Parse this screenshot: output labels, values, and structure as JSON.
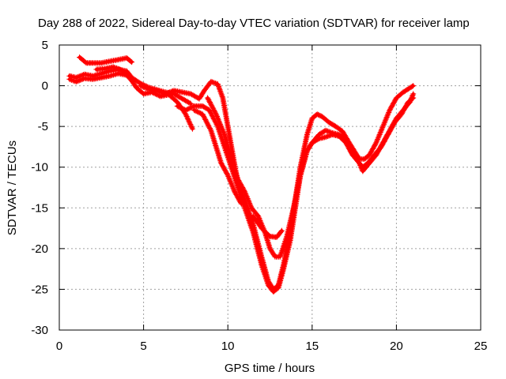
{
  "chart_data": {
    "type": "scatter",
    "title": "Day 288 of 2022, Sidereal Day-to-day VTEC variation (SDTVAR) for receiver lamp",
    "xlabel": "GPS time / hours",
    "ylabel": "SDTVAR / TECUs",
    "xlim": [
      0,
      25
    ],
    "ylim": [
      -30,
      5
    ],
    "xticks": [
      0,
      5,
      10,
      15,
      20,
      25
    ],
    "yticks": [
      5,
      0,
      -5,
      -10,
      -15,
      -20,
      -25,
      -30
    ],
    "grid": true,
    "marker": "plus",
    "series_color": "#ff0000",
    "series": [
      {
        "name": "track-1",
        "x": [
          0.6,
          1.0,
          1.5,
          2.0,
          2.5,
          3.0,
          3.5,
          4.0,
          4.3,
          4.8,
          5.3,
          5.8,
          6.3,
          6.8,
          7.3,
          7.8
        ],
        "y": [
          1.2,
          1.0,
          1.4,
          1.2,
          1.5,
          1.8,
          2.0,
          1.8,
          1.0,
          0.3,
          -0.2,
          -0.5,
          -0.8,
          -1.0,
          -1.6,
          -2.2
        ]
      },
      {
        "name": "track-2",
        "x": [
          0.6,
          1.0,
          1.5,
          2.0,
          2.5,
          3.0,
          3.5,
          4.0,
          4.3,
          4.6,
          5.0,
          5.5,
          6.0,
          6.5,
          7.0,
          7.5,
          7.9
        ],
        "y": [
          0.8,
          0.5,
          0.9,
          0.8,
          1.0,
          1.2,
          1.5,
          1.3,
          0.6,
          -0.3,
          -1.0,
          -0.8,
          -1.3,
          -1.1,
          -2.0,
          -3.5,
          -5.3
        ]
      },
      {
        "name": "track-3",
        "x": [
          1.2,
          1.6,
          2.0,
          2.5,
          3.0,
          3.5,
          4.0,
          4.3
        ],
        "y": [
          3.5,
          2.8,
          2.8,
          2.8,
          3.0,
          3.2,
          3.4,
          2.9
        ]
      },
      {
        "name": "track-4",
        "x": [
          2.2,
          2.7,
          3.2,
          3.6,
          4.0
        ],
        "y": [
          2.0,
          2.1,
          2.3,
          2.0,
          1.5
        ]
      },
      {
        "name": "track-5",
        "x": [
          4.8,
          5.3,
          5.8,
          6.3,
          6.8,
          7.3,
          7.8,
          8.3,
          8.6,
          9.0,
          9.4,
          9.7,
          10.0,
          10.3,
          10.6,
          11.0,
          11.5,
          12.0,
          12.4,
          12.7,
          13.0,
          13.3,
          13.6,
          14.0,
          14.3,
          14.7,
          15.0,
          15.3,
          15.6,
          16.0,
          16.4,
          16.8,
          17.2,
          17.5,
          17.8,
          18.1,
          18.4,
          18.8,
          19.2,
          19.6,
          20.0,
          20.4,
          20.7,
          21.0
        ],
        "y": [
          0.0,
          -0.4,
          -0.6,
          -1.0,
          -0.6,
          -0.8,
          -1.0,
          -1.6,
          -0.6,
          0.5,
          0.2,
          -1.5,
          -5.0,
          -8.5,
          -12.0,
          -14.0,
          -17.0,
          -21.0,
          -24.0,
          -25.0,
          -24.5,
          -22.0,
          -19.0,
          -14.0,
          -10.0,
          -6.0,
          -4.0,
          -3.5,
          -3.8,
          -4.5,
          -5.0,
          -5.6,
          -7.0,
          -8.0,
          -9.0,
          -9.0,
          -8.5,
          -7.0,
          -5.0,
          -3.0,
          -1.5,
          -0.8,
          -0.4,
          0.0
        ]
      },
      {
        "name": "track-6",
        "x": [
          7.0,
          7.5,
          8.0,
          8.5,
          8.9,
          9.4,
          9.8,
          10.2,
          10.6,
          11.0,
          11.5,
          12.0,
          12.4,
          12.7,
          13.0,
          13.3,
          13.7,
          14.0,
          14.3,
          14.7,
          15.0,
          15.4,
          15.8,
          16.2,
          16.6,
          17.0,
          17.4,
          17.8,
          18.0,
          18.3,
          18.7,
          19.1,
          19.5,
          19.9,
          20.3,
          20.7,
          21.0
        ],
        "y": [
          -2.5,
          -3.0,
          -2.5,
          -2.5,
          -3.0,
          -5.0,
          -7.5,
          -10.0,
          -12.5,
          -15.0,
          -18.0,
          -22.0,
          -24.5,
          -25.3,
          -24.8,
          -22.5,
          -19.0,
          -15.0,
          -11.0,
          -8.0,
          -7.0,
          -6.0,
          -5.5,
          -5.8,
          -6.0,
          -6.5,
          -8.5,
          -9.5,
          -10.0,
          -9.5,
          -8.5,
          -7.5,
          -6.0,
          -4.5,
          -3.5,
          -2.0,
          -1.5
        ]
      },
      {
        "name": "track-7",
        "x": [
          8.8,
          9.3,
          9.8,
          10.2,
          10.6,
          11.0,
          11.4,
          11.8,
          12.2,
          12.5,
          12.8,
          13.1,
          13.5,
          13.9,
          14.3,
          14.7,
          15.0,
          15.4,
          15.8,
          16.2,
          16.6,
          17.0,
          17.4,
          17.8,
          18.0,
          18.4,
          18.8,
          19.2,
          19.6,
          20.0,
          20.4,
          20.8,
          21.0
        ],
        "y": [
          -1.5,
          -3.5,
          -6.0,
          -9.0,
          -11.5,
          -13.0,
          -15.0,
          -16.0,
          -18.0,
          -20.0,
          -21.0,
          -21.0,
          -18.5,
          -15.0,
          -11.0,
          -8.0,
          -7.0,
          -6.5,
          -6.3,
          -6.0,
          -6.2,
          -7.0,
          -8.5,
          -9.5,
          -10.5,
          -9.5,
          -8.5,
          -7.0,
          -5.5,
          -4.0,
          -3.0,
          -2.0,
          -1.0
        ]
      },
      {
        "name": "track-8",
        "x": [
          8.0,
          8.5,
          9.0,
          9.3,
          9.6,
          10.0,
          10.4,
          10.8
        ],
        "y": [
          -3.0,
          -3.5,
          -5.5,
          -7.5,
          -9.5,
          -11.0,
          -13.0,
          -14.5
        ]
      },
      {
        "name": "track-9",
        "x": [
          11.5,
          12.0,
          12.5,
          12.9,
          13.2
        ],
        "y": [
          -16.0,
          -17.5,
          -18.5,
          -18.6,
          -17.8
        ]
      }
    ]
  }
}
